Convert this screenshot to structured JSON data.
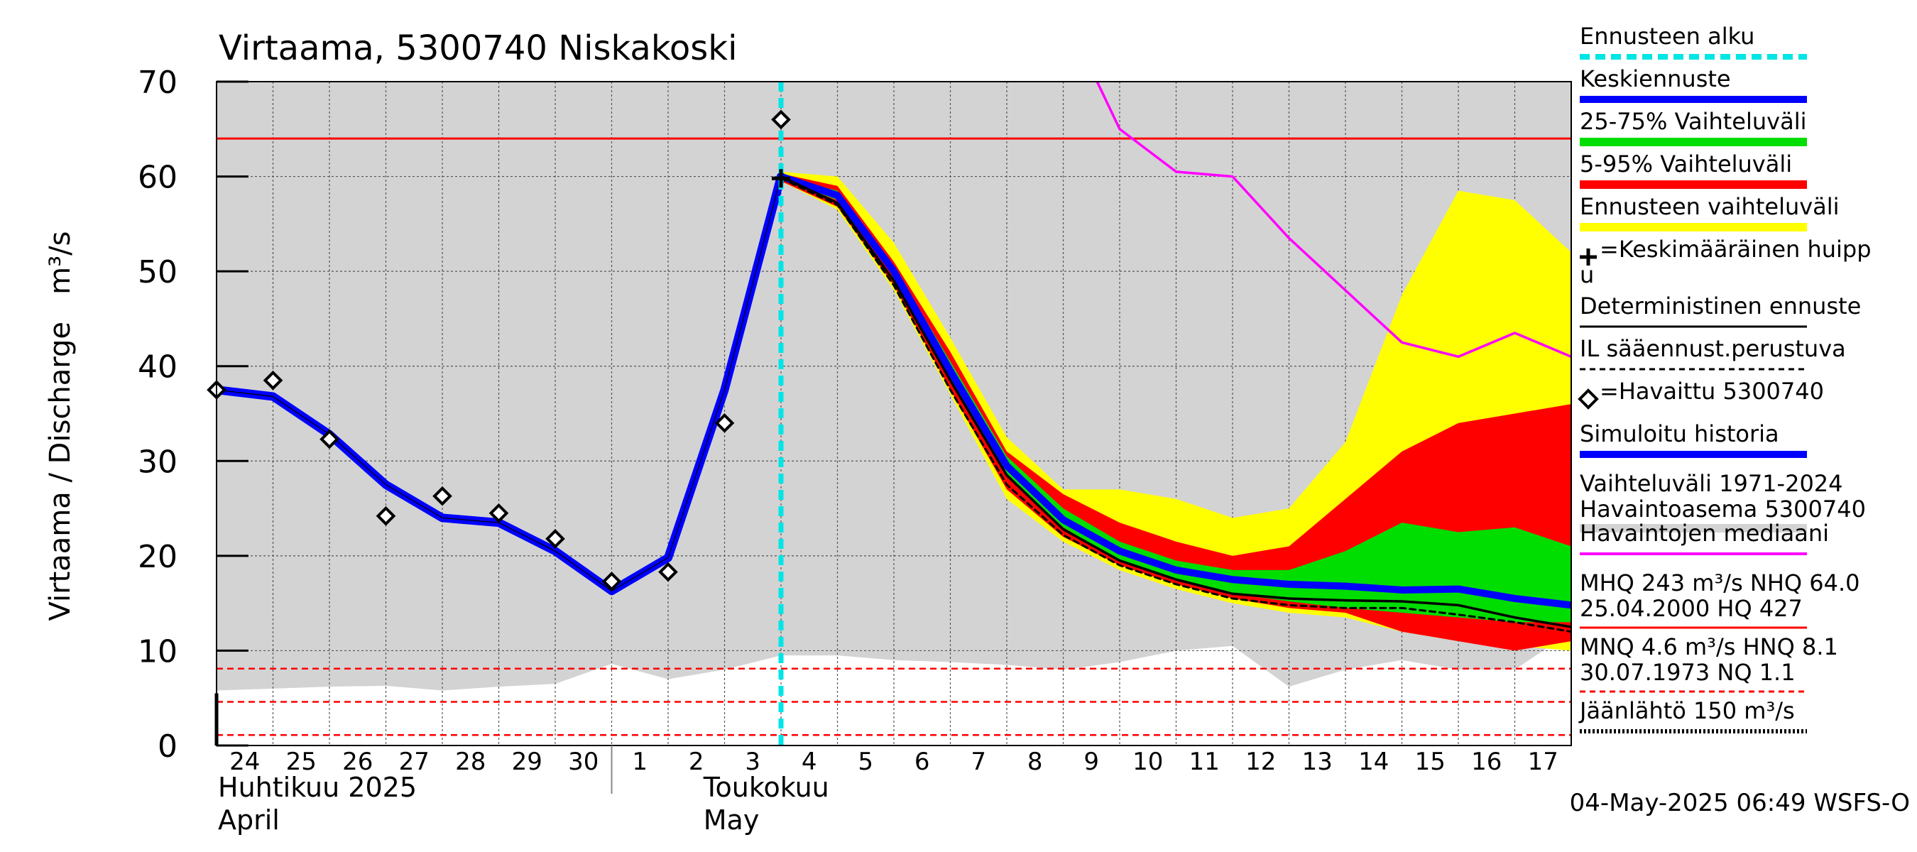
{
  "chart_data": {
    "type": "area",
    "title": "Virtaama, 5300740 Niskakoski",
    "ylabel": "Virtaama / Discharge   m³/s",
    "ylim": [
      0,
      70
    ],
    "yticks": [
      "0",
      "10",
      "20",
      "30",
      "40",
      "50",
      "60",
      "70"
    ],
    "x_day_labels": [
      "24",
      "25",
      "26",
      "27",
      "28",
      "29",
      "30",
      "1",
      "2",
      "3",
      "4",
      "5",
      "6",
      "7",
      "8",
      "9",
      "10",
      "11",
      "12",
      "13",
      "14",
      "15",
      "16",
      "17"
    ],
    "month_labels": [
      {
        "fi": "Huhtikuu  2025",
        "en": "April"
      },
      {
        "fi": "Toukokuu",
        "en": "May"
      }
    ],
    "forecast_start": "2025-05-04",
    "forecast_start_day_index": 10,
    "x_start_day_index": 0,
    "x_end_day_index": 24,
    "history_range": {
      "x": [
        0,
        1,
        2,
        3,
        4,
        5,
        6,
        7,
        8,
        9,
        10,
        11,
        12,
        13,
        14,
        15,
        16,
        17,
        18,
        19,
        20,
        21,
        22,
        23,
        24
      ],
      "lower": [
        5.8,
        6.0,
        6.2,
        6.3,
        5.8,
        6.2,
        6.5,
        8.6,
        7.0,
        8.0,
        9.5,
        9.5,
        9.0,
        8.8,
        8.5,
        8.0,
        8.8,
        10.0,
        10.5,
        6.2,
        8.0,
        9.0,
        8.0,
        8.0,
        12.0
      ],
      "upper": [
        70,
        70,
        70,
        70,
        70,
        70,
        70,
        70,
        70,
        70,
        70,
        70,
        70,
        70,
        70,
        70,
        70,
        70,
        70,
        70,
        70,
        70,
        70,
        70,
        70
      ]
    },
    "forecast_range": {
      "x": [
        10,
        11,
        12,
        13,
        14,
        15,
        16,
        17,
        18,
        19,
        20,
        21,
        22,
        23,
        24
      ],
      "lower": [
        59.5,
        56.5,
        48,
        37,
        26,
        21.5,
        18.5,
        16.5,
        15,
        14,
        13.5,
        12,
        11,
        10.5,
        10
      ],
      "upper": [
        60.5,
        60,
        53,
        43,
        32.5,
        27,
        27,
        26,
        24,
        25,
        32,
        47.5,
        58.5,
        57.5,
        52
      ]
    },
    "band_5_95": {
      "x": [
        10,
        11,
        12,
        13,
        14,
        15,
        16,
        17,
        18,
        19,
        20,
        21,
        22,
        23,
        24
      ],
      "lower": [
        59.5,
        56.8,
        48.5,
        37.5,
        27,
        22,
        19,
        17,
        15.5,
        14.5,
        14,
        12,
        11,
        10,
        11
      ],
      "upper": [
        60.3,
        59,
        51,
        41.5,
        31,
        26.5,
        23.5,
        21.5,
        20,
        21,
        26,
        31,
        34,
        35,
        36
      ]
    },
    "band_25_75": {
      "x": [
        10,
        11,
        12,
        13,
        14,
        15,
        16,
        17,
        18,
        19,
        20,
        21,
        22,
        23,
        24
      ],
      "lower": [
        59.8,
        57.5,
        49.5,
        38.5,
        28.5,
        23,
        19.5,
        17.5,
        16,
        15.2,
        14.5,
        14,
        13.5,
        13,
        13
      ],
      "upper": [
        60,
        58.5,
        50.5,
        40.5,
        30.5,
        25,
        21.5,
        19.5,
        18.5,
        18.5,
        20.5,
        23.5,
        22.5,
        23,
        21
      ]
    },
    "series": [
      {
        "name": "Simuloitu historia",
        "x": [
          0,
          1,
          2,
          3,
          4,
          5,
          6,
          7,
          8,
          9,
          10
        ],
        "values": [
          37.5,
          36.8,
          32.8,
          27.5,
          24,
          23.5,
          20.5,
          16.3,
          19.8,
          37.5,
          60
        ]
      },
      {
        "name": "Keskiennuste",
        "x": [
          10,
          11,
          12,
          13,
          14,
          15,
          16,
          17,
          18,
          19,
          20,
          21,
          22,
          23,
          24
        ],
        "values": [
          60,
          58,
          50,
          39.5,
          29.5,
          23.8,
          20.5,
          18.5,
          17.5,
          17,
          16.8,
          16.4,
          16.5,
          15.5,
          14.8
        ]
      },
      {
        "name": "Deterministinen ennuste",
        "x": [
          10,
          11,
          12,
          13,
          14,
          15,
          16,
          17,
          18,
          19,
          20,
          21,
          22,
          23,
          24
        ],
        "values": [
          60,
          57.2,
          49,
          38.5,
          28.5,
          22.8,
          19.5,
          17.5,
          16,
          15.5,
          15.3,
          15.2,
          14.8,
          13.5,
          12.5
        ]
      },
      {
        "name": "IL sääennust.perustuva",
        "x": [
          10,
          11,
          12,
          13,
          14,
          15,
          16,
          17,
          18,
          19,
          20,
          21,
          22,
          23,
          24
        ],
        "values": [
          59.8,
          57,
          48.5,
          37.5,
          27.5,
          22.2,
          19,
          17,
          15.5,
          14.8,
          14.5,
          14.5,
          13.8,
          13,
          12
        ]
      },
      {
        "name": "Havaintojen mediaani",
        "x": [
          15.6,
          16,
          17,
          18,
          19,
          20,
          21,
          22,
          23,
          24
        ],
        "values": [
          70,
          65,
          60.5,
          60,
          53.5,
          48,
          42.5,
          41,
          43.5,
          41
        ]
      }
    ],
    "observed": {
      "name": "=Havaittu 5300740",
      "x": [
        0,
        1,
        2,
        3,
        4,
        5,
        6,
        7,
        8,
        9,
        10
      ],
      "values": [
        37.5,
        38.5,
        32.3,
        24.2,
        26.3,
        24.5,
        21.8,
        17.3,
        18.3,
        34,
        66
      ]
    },
    "mean_peak": {
      "x": 10,
      "value": 59.8
    },
    "reference_lines": [
      {
        "label": "NHQ",
        "value": 64.0
      },
      {
        "label": "HNQ",
        "value": 8.1
      },
      {
        "label": "MNQ",
        "value": 4.6
      },
      {
        "label": "NQ",
        "value": 1.1
      }
    ],
    "legend_position": "right",
    "grid": true,
    "legend": [
      {
        "text": "Ennusteen alku",
        "swatch": "dashed-cyan"
      },
      {
        "text": "Keskiennuste",
        "swatch": "blue"
      },
      {
        "text": "25-75% Vaihteluväli",
        "swatch": "green"
      },
      {
        "text": "5-95% Vaihteluväli",
        "swatch": "red"
      },
      {
        "text": "Ennusteen vaihteluväli",
        "swatch": "yellow"
      },
      {
        "text": "=Keskimääräinen huipp",
        "text2": "u",
        "swatch": "none",
        "marker": "plus"
      },
      {
        "text": "Deterministinen ennuste",
        "swatch": "black-thin"
      },
      {
        "text": "IL sääennust.perustuva",
        "swatch": "black-dashed"
      },
      {
        "text": "=Havaittu 5300740",
        "swatch": "none",
        "marker": "diamond"
      },
      {
        "text": "Simuloitu historia",
        "swatch": "blue"
      },
      {
        "text": "Vaihteluväli 1971-2024",
        "text2": " Havaintoasema 5300740",
        "swatch": "gray"
      },
      {
        "text": "Havaintojen mediaani",
        "swatch": "magenta"
      },
      {
        "text": "MHQ  243 m³/s NHQ 64.0",
        "text2": "25.04.2000 HQ  427",
        "swatch": "red-thin"
      },
      {
        "text": "MNQ  4.6 m³/s HNQ  8.1",
        "text2": "30.07.1973 NQ  1.1",
        "swatch": "red-dashed"
      },
      {
        "text": "Jäänlähtö 150 m³/s",
        "swatch": "black-dotted"
      }
    ],
    "footer": "04-May-2025 06:49 WSFS-O",
    "colors": {
      "history_range": "#d3d3d3",
      "forecast_range": "#ffff00",
      "band_5_95": "#ff0000",
      "band_25_75": "#00dd00",
      "mean_forecast": "#0000ff",
      "simulated": "#0000ff",
      "median": "#ff00ff",
      "forecast_start": "#00e5e5",
      "reference": "#ff0000"
    }
  }
}
